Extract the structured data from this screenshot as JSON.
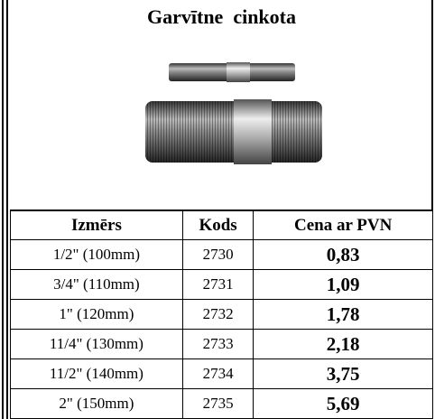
{
  "header": {
    "title": "Garvītne  cinkota"
  },
  "table": {
    "columns": [
      "Izmērs",
      "Kods",
      "Cena ar PVN"
    ],
    "rows": [
      [
        "1/2\" (100mm)",
        "2730",
        "0,83"
      ],
      [
        "3/4\" (110mm)",
        "2731",
        "1,09"
      ],
      [
        "1\" (120mm)",
        "2732",
        "1,78"
      ],
      [
        "11/4\" (130mm)",
        "2733",
        "2,18"
      ],
      [
        "11/2\" (140mm)",
        "2734",
        "3,75"
      ],
      [
        "2\" (150mm)",
        "2735",
        "5,69"
      ]
    ]
  }
}
